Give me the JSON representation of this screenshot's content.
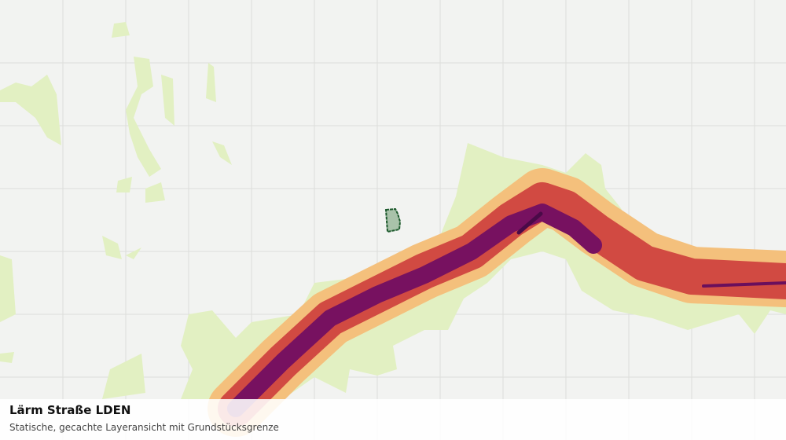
{
  "legend_panel": {
    "title": "Lärm Straße LDEN",
    "subtitle": "Statische, gecachte Layeransicht mit Grundstücksgrenze"
  }
}
